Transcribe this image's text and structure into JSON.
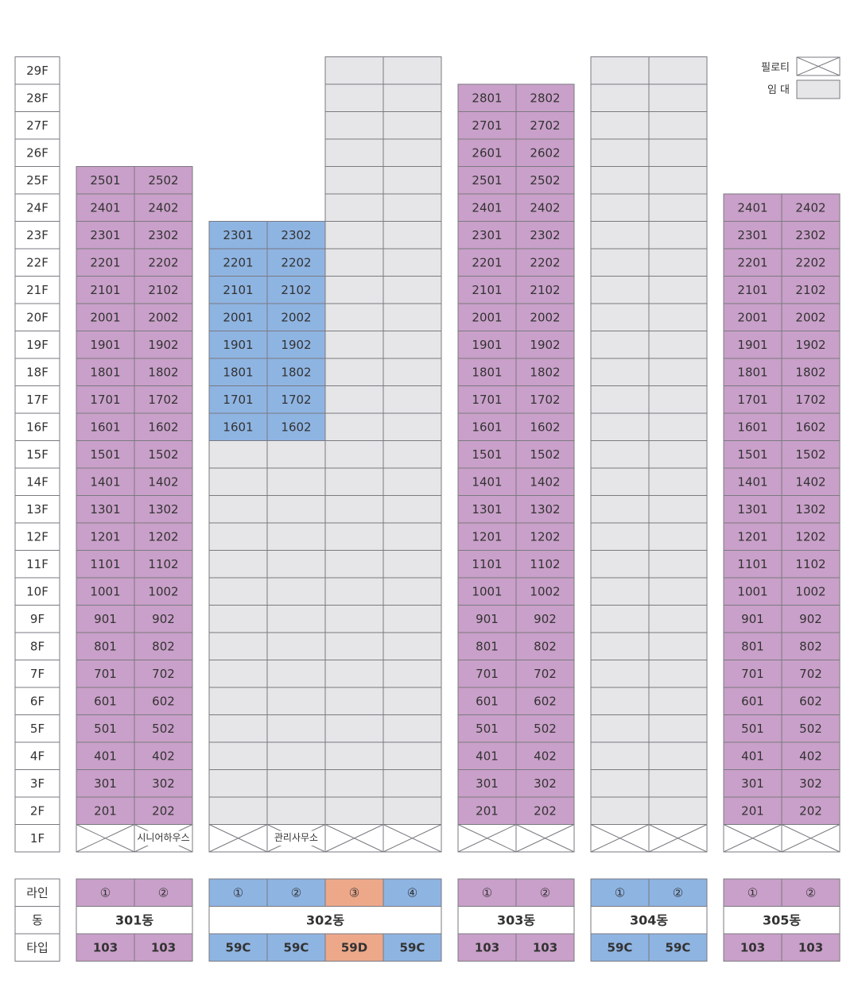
{
  "legend": {
    "piloti_label": "필로티",
    "rental_label": "임 대"
  },
  "colors": {
    "purple": "#c9a0c9",
    "blue": "#8eb4e2",
    "orange": "#eda88a",
    "gray": "#e6e6e8",
    "border": "#7a7a80",
    "text": "#333333"
  },
  "floors": [
    "1F",
    "2F",
    "3F",
    "4F",
    "5F",
    "6F",
    "7F",
    "8F",
    "9F",
    "10F",
    "11F",
    "12F",
    "13F",
    "14F",
    "15F",
    "16F",
    "17F",
    "18F",
    "19F",
    "20F",
    "21F",
    "22F",
    "23F",
    "24F",
    "25F",
    "26F",
    "27F",
    "28F",
    "29F"
  ],
  "footer_labels": {
    "line": "라인",
    "dong": "동",
    "type": "타입"
  },
  "buildings": [
    {
      "name": "301동",
      "columns": [
        {
          "line": "①",
          "type": "103",
          "color": "purple",
          "piloti_label": "",
          "segments": [
            {
              "from": 2,
              "to": 25,
              "color": "purple",
              "numbered": true
            }
          ]
        },
        {
          "line": "②",
          "type": "103",
          "color": "purple",
          "piloti_label": "시니어하우스",
          "segments": [
            {
              "from": 2,
              "to": 25,
              "color": "purple",
              "numbered": true
            }
          ]
        }
      ]
    },
    {
      "name": "302동",
      "columns": [
        {
          "line": "①",
          "type": "59C",
          "color": "blue",
          "piloti_label": "",
          "segments": [
            {
              "from": 2,
              "to": 15,
              "color": "gray",
              "numbered": false
            },
            {
              "from": 16,
              "to": 23,
              "color": "blue",
              "numbered": true
            }
          ]
        },
        {
          "line": "②",
          "type": "59C",
          "color": "blue",
          "piloti_label": "관리사무소",
          "segments": [
            {
              "from": 2,
              "to": 15,
              "color": "gray",
              "numbered": false
            },
            {
              "from": 16,
              "to": 23,
              "color": "blue",
              "numbered": true
            }
          ]
        },
        {
          "line": "③",
          "type": "59D",
          "color": "orange",
          "piloti_label": "",
          "segments": [
            {
              "from": 2,
              "to": 29,
              "color": "gray",
              "numbered": false
            }
          ]
        },
        {
          "line": "④",
          "type": "59C",
          "color": "blue",
          "piloti_label": "",
          "segments": [
            {
              "from": 2,
              "to": 29,
              "color": "gray",
              "numbered": false
            }
          ]
        }
      ]
    },
    {
      "name": "303동",
      "columns": [
        {
          "line": "①",
          "type": "103",
          "color": "purple",
          "piloti_label": "",
          "segments": [
            {
              "from": 2,
              "to": 28,
              "color": "purple",
              "numbered": true
            }
          ]
        },
        {
          "line": "②",
          "type": "103",
          "color": "purple",
          "piloti_label": "",
          "segments": [
            {
              "from": 2,
              "to": 28,
              "color": "purple",
              "numbered": true
            }
          ]
        }
      ]
    },
    {
      "name": "304동",
      "columns": [
        {
          "line": "①",
          "type": "59C",
          "color": "blue",
          "piloti_label": "",
          "segments": [
            {
              "from": 2,
              "to": 29,
              "color": "gray",
              "numbered": false
            }
          ]
        },
        {
          "line": "②",
          "type": "59C",
          "color": "blue",
          "piloti_label": "",
          "segments": [
            {
              "from": 2,
              "to": 29,
              "color": "gray",
              "numbered": false
            }
          ]
        }
      ]
    },
    {
      "name": "305동",
      "columns": [
        {
          "line": "①",
          "type": "103",
          "color": "purple",
          "piloti_label": "",
          "segments": [
            {
              "from": 2,
              "to": 24,
              "color": "purple",
              "numbered": true
            }
          ]
        },
        {
          "line": "②",
          "type": "103",
          "color": "purple",
          "piloti_label": "",
          "segments": [
            {
              "from": 2,
              "to": 24,
              "color": "purple",
              "numbered": true
            }
          ]
        }
      ]
    }
  ]
}
